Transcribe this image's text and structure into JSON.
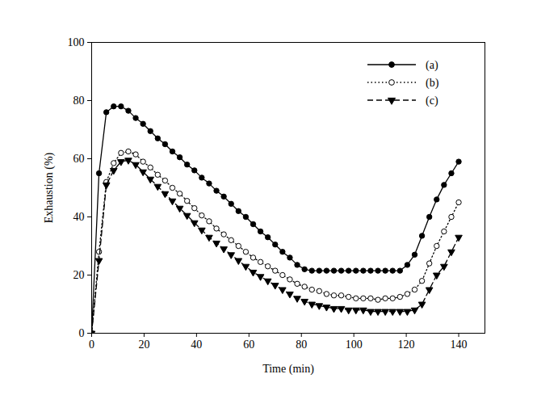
{
  "chart_data": {
    "type": "line",
    "x_label": "Time (min)",
    "y_label": "Exhaustion (%)",
    "x": [
      0,
      2.8,
      5.6,
      8.4,
      11.2,
      14,
      16.8,
      19.6,
      22.4,
      25.2,
      28,
      30.8,
      33.6,
      36.4,
      39.2,
      42,
      44.8,
      47.6,
      50.4,
      53.2,
      56,
      58.8,
      61.6,
      64.4,
      67.2,
      70,
      72.8,
      75.6,
      78.4,
      81.2,
      84,
      86.8,
      89.6,
      92.4,
      95.2,
      98,
      100.8,
      103.6,
      106.4,
      109.2,
      112,
      114.8,
      117.6,
      120.4,
      123.2,
      126,
      128.8,
      131.6,
      134.4,
      137.2,
      140
    ],
    "series": [
      {
        "name": "(a)",
        "color": "#000000",
        "marker": "circle",
        "line_style": "solid",
        "values": [
          0,
          55,
          76,
          78,
          78,
          76.5,
          74,
          72,
          69.5,
          67,
          65,
          62.5,
          60.5,
          58,
          56,
          53.5,
          51.5,
          49,
          47,
          44.5,
          42,
          40,
          37.5,
          35,
          33,
          30.5,
          28,
          26,
          23.5,
          22,
          21.5,
          21.5,
          21.5,
          21.5,
          21.5,
          21.5,
          21.5,
          21.5,
          21.5,
          21.5,
          21.5,
          21.5,
          21.5,
          23.5,
          27,
          33.5,
          40,
          46,
          51,
          55,
          59
        ]
      },
      {
        "name": "(b)",
        "color": "#000000",
        "marker": "open_circle",
        "line_style": "dotted",
        "values": [
          0,
          28,
          52,
          58.5,
          62,
          62.5,
          61.5,
          59,
          57,
          54.5,
          52.5,
          50,
          48,
          45.5,
          43,
          40.5,
          38.5,
          36,
          34,
          32,
          30,
          28,
          26,
          24.5,
          23,
          21.5,
          20,
          18.5,
          17,
          16,
          15,
          14.5,
          13.5,
          13,
          13,
          12.5,
          12,
          12,
          12,
          11.5,
          12,
          12,
          12.5,
          13.5,
          15,
          18,
          24,
          30,
          35,
          40,
          45
        ]
      },
      {
        "name": "(c)",
        "color": "#000000",
        "marker": "triangle_down",
        "line_style": "dashed",
        "values": [
          0,
          25,
          51,
          56,
          59,
          59.5,
          58,
          55.5,
          53,
          50.5,
          48,
          45.5,
          43,
          40.5,
          38,
          35.5,
          33,
          31,
          29,
          27,
          25,
          23,
          21,
          19.5,
          18,
          16.5,
          15,
          13.5,
          12,
          11,
          10,
          9.5,
          9,
          8.5,
          8.5,
          8,
          8,
          8,
          7.5,
          7.5,
          7.5,
          7.5,
          7.5,
          7.5,
          8,
          10,
          15,
          20,
          23,
          28,
          33
        ]
      }
    ],
    "xlim": [
      0,
      150
    ],
    "xticks": [
      0,
      20,
      40,
      60,
      80,
      100,
      120,
      140
    ],
    "ylim": [
      0,
      100
    ],
    "yticks": [
      0,
      20,
      40,
      60,
      80,
      100
    ],
    "grid": false,
    "legend": "top-right"
  }
}
